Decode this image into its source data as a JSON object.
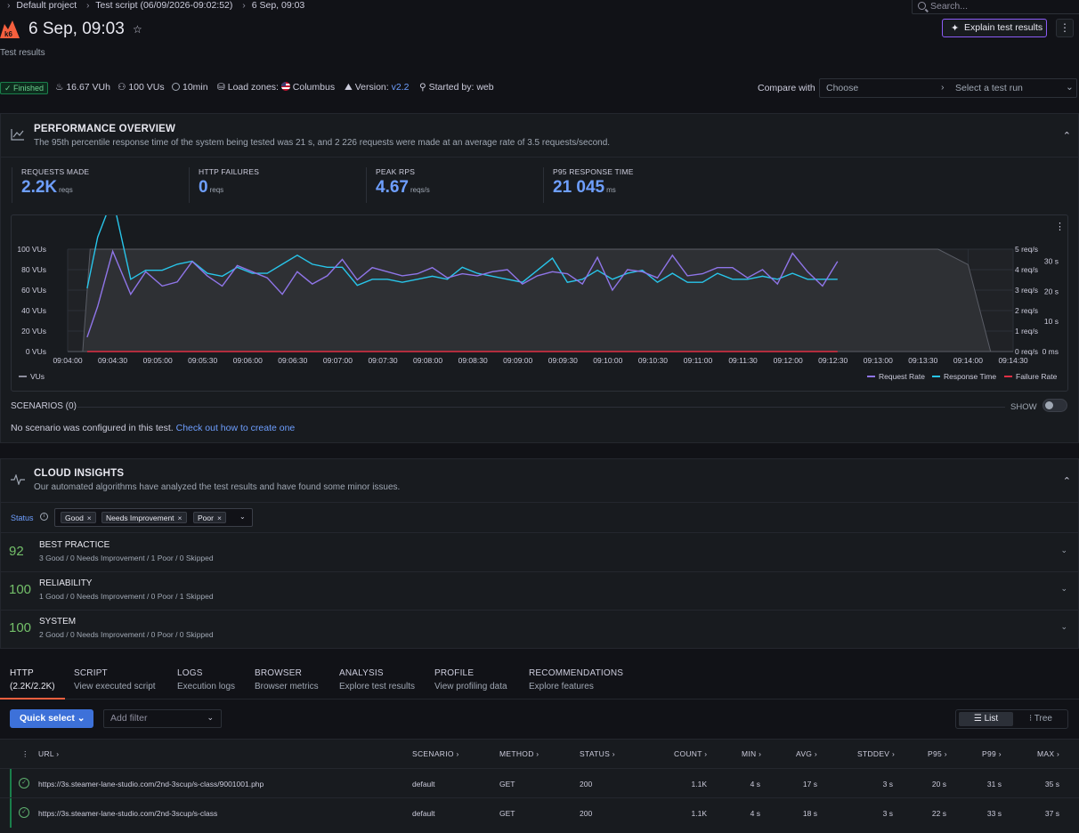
{
  "breadcrumb": [
    "Default project",
    "Test script (06/09/2026-09:02:52)",
    "6 Sep, 09:03"
  ],
  "search": {
    "placeholder": "Search..."
  },
  "header": {
    "title": "6 Sep, 09:03",
    "subtitle": "Test results",
    "explain_label": "Explain test results"
  },
  "meta": {
    "status": "Finished",
    "vuh": "16.67 VUh",
    "vus": "100 VUs",
    "duration": "10min",
    "load_zones_label": "Load zones:",
    "load_zone": "Columbus",
    "version_label": "Version:",
    "version": "v2.2",
    "started_by": "Started by: web"
  },
  "compare": {
    "label": "Compare with",
    "choose": "Choose",
    "select": "Select a test run"
  },
  "performance": {
    "title": "PERFORMANCE OVERVIEW",
    "description": "The 95th percentile response time of the system being tested was 21 s, and 2 226 requests were made at an average rate of 3.5 requests/second.",
    "stats": [
      {
        "label": "REQUESTS MADE",
        "value": "2.2K",
        "unit": "reqs"
      },
      {
        "label": "HTTP FAILURES",
        "value": "0",
        "unit": "reqs"
      },
      {
        "label": "PEAK RPS",
        "value": "4.67",
        "unit": "reqs/s"
      },
      {
        "label": "P95 RESPONSE TIME",
        "value": "21 045",
        "unit": "ms"
      }
    ],
    "scenarios_label": "SCENARIOS (0)",
    "show_label": "SHOW",
    "no_scenario_text": "No scenario was configured in this test.",
    "no_scenario_link": "Check out how to create one"
  },
  "chart_data": {
    "type": "line",
    "x": [
      "09:04:00",
      "09:04:30",
      "09:05:00",
      "09:05:30",
      "09:06:00",
      "09:06:30",
      "09:07:00",
      "09:07:30",
      "09:08:00",
      "09:08:30",
      "09:09:00",
      "09:09:30",
      "09:10:00",
      "09:10:30",
      "09:11:00",
      "09:11:30",
      "09:12:00",
      "09:12:30",
      "09:13:00",
      "09:13:30",
      "09:14:00",
      "09:14:30"
    ],
    "y_left_ticks": [
      "0 VUs",
      "20 VUs",
      "40 VUs",
      "60 VUs",
      "80 VUs",
      "100 VUs"
    ],
    "y_right_rate_ticks": [
      "0 req/s",
      "1 req/s",
      "2 req/s",
      "3 req/s",
      "4 req/s",
      "5 req/s"
    ],
    "y_right_time_ticks": [
      "0 ms",
      "10 s",
      "20 s",
      "30 s"
    ],
    "vus": [
      [
        0,
        0
      ],
      [
        5,
        0
      ],
      [
        10,
        0
      ],
      [
        15,
        100
      ],
      [
        540,
        100
      ],
      [
        580,
        100
      ],
      [
        600,
        85
      ],
      [
        615,
        0
      ],
      [
        630,
        0
      ]
    ],
    "request_rate": [
      [
        13,
        0.7
      ],
      [
        20,
        2.2
      ],
      [
        30,
        4.9
      ],
      [
        42,
        2.8
      ],
      [
        52,
        3.9
      ],
      [
        63,
        3.2
      ],
      [
        73,
        3.4
      ],
      [
        83,
        4.4
      ],
      [
        93,
        3.7
      ],
      [
        103,
        3.2
      ],
      [
        113,
        4.2
      ],
      [
        123,
        3.9
      ],
      [
        133,
        3.6
      ],
      [
        143,
        2.8
      ],
      [
        153,
        3.9
      ],
      [
        163,
        3.3
      ],
      [
        173,
        3.7
      ],
      [
        183,
        4.5
      ],
      [
        193,
        3.5
      ],
      [
        203,
        4.1
      ],
      [
        213,
        3.9
      ],
      [
        223,
        3.7
      ],
      [
        233,
        3.8
      ],
      [
        243,
        4.1
      ],
      [
        253,
        3.6
      ],
      [
        263,
        3.8
      ],
      [
        273,
        3.7
      ],
      [
        283,
        3.9
      ],
      [
        293,
        4.0
      ],
      [
        303,
        3.3
      ],
      [
        313,
        3.7
      ],
      [
        323,
        3.9
      ],
      [
        333,
        3.8
      ],
      [
        343,
        3.3
      ],
      [
        353,
        4.6
      ],
      [
        363,
        3.0
      ],
      [
        373,
        4.0
      ],
      [
        383,
        3.9
      ],
      [
        393,
        3.6
      ],
      [
        403,
        4.7
      ],
      [
        413,
        3.7
      ],
      [
        423,
        3.8
      ],
      [
        433,
        4.1
      ],
      [
        443,
        4.1
      ],
      [
        453,
        3.6
      ],
      [
        463,
        4.0
      ],
      [
        473,
        3.3
      ],
      [
        483,
        4.8
      ],
      [
        493,
        3.9
      ],
      [
        503,
        3.2
      ],
      [
        513,
        4.4
      ]
    ],
    "response_time": [
      [
        13,
        21
      ],
      [
        20,
        38
      ],
      [
        30,
        51
      ],
      [
        42,
        24
      ],
      [
        52,
        27
      ],
      [
        63,
        27
      ],
      [
        73,
        29
      ],
      [
        83,
        30
      ],
      [
        93,
        26
      ],
      [
        103,
        25
      ],
      [
        113,
        28
      ],
      [
        123,
        26
      ],
      [
        133,
        26
      ],
      [
        143,
        29
      ],
      [
        153,
        32
      ],
      [
        163,
        29
      ],
      [
        173,
        28
      ],
      [
        183,
        28
      ],
      [
        193,
        22
      ],
      [
        203,
        24
      ],
      [
        213,
        24
      ],
      [
        223,
        23
      ],
      [
        233,
        24
      ],
      [
        243,
        25
      ],
      [
        253,
        24
      ],
      [
        263,
        28
      ],
      [
        273,
        26
      ],
      [
        283,
        25
      ],
      [
        293,
        24
      ],
      [
        303,
        23
      ],
      [
        313,
        27
      ],
      [
        323,
        31
      ],
      [
        333,
        23
      ],
      [
        343,
        24
      ],
      [
        353,
        27
      ],
      [
        363,
        24
      ],
      [
        373,
        26
      ],
      [
        383,
        27
      ],
      [
        393,
        23
      ],
      [
        403,
        26
      ],
      [
        413,
        23
      ],
      [
        423,
        23
      ],
      [
        433,
        26
      ],
      [
        443,
        24
      ],
      [
        453,
        24
      ],
      [
        463,
        25
      ],
      [
        473,
        24
      ],
      [
        483,
        26
      ],
      [
        493,
        24
      ],
      [
        503,
        24
      ],
      [
        513,
        24
      ]
    ],
    "failure_rate": [
      [
        13,
        0
      ],
      [
        513,
        0
      ]
    ],
    "legend": [
      "VUs",
      "Request Rate",
      "Response Time",
      "Failure Rate"
    ],
    "colors": {
      "vus": "#8e8e9e",
      "request_rate": "#8f75e8",
      "response_time": "#28c5ea",
      "failure_rate": "#e02f44"
    },
    "grid": true
  },
  "insights": {
    "title": "CLOUD INSIGHTS",
    "description": "Our automated algorithms have analyzed the test results and have found some minor issues.",
    "status_label": "Status",
    "chips": [
      "Good",
      "Needs Improvement",
      "Poor"
    ],
    "rows": [
      {
        "score": "92",
        "name": "BEST PRACTICE",
        "summary": "3 Good / 0 Needs Improvement / 1 Poor / 0 Skipped"
      },
      {
        "score": "100",
        "name": "RELIABILITY",
        "summary": "1 Good / 0 Needs Improvement / 0 Poor / 1 Skipped"
      },
      {
        "score": "100",
        "name": "SYSTEM",
        "summary": "2 Good / 0 Needs Improvement / 0 Poor / 0 Skipped"
      }
    ]
  },
  "tabs": [
    {
      "title": "HTTP",
      "sub": "(2.2K/2.2K)"
    },
    {
      "title": "SCRIPT",
      "sub": "View executed script"
    },
    {
      "title": "LOGS",
      "sub": "Execution logs"
    },
    {
      "title": "BROWSER",
      "sub": "Browser metrics"
    },
    {
      "title": "ANALYSIS",
      "sub": "Explore test results"
    },
    {
      "title": "PROFILE",
      "sub": "View profiling data"
    },
    {
      "title": "RECOMMENDATIONS",
      "sub": "Explore features"
    }
  ],
  "toolbar": {
    "quick_select": "Quick select",
    "add_filter": "Add filter",
    "list": "List",
    "tree": "Tree"
  },
  "table": {
    "headers": [
      "URL",
      "SCENARIO",
      "METHOD",
      "STATUS",
      "COUNT",
      "MIN",
      "AVG",
      "STDDEV",
      "P95",
      "P99",
      "MAX"
    ],
    "rows": [
      {
        "url": "https://3s.steamer-lane-studio.com/2nd-3scup/s-class/9001001.php",
        "scenario": "default",
        "method": "GET",
        "status": "200",
        "count": "1.1K",
        "min": "4 s",
        "avg": "17 s",
        "stddev": "3 s",
        "p95": "20 s",
        "p99": "31 s",
        "max": "35 s"
      },
      {
        "url": "https://3s.steamer-lane-studio.com/2nd-3scup/s-class",
        "scenario": "default",
        "method": "GET",
        "status": "200",
        "count": "1.1K",
        "min": "4 s",
        "avg": "18 s",
        "stddev": "3 s",
        "p95": "22 s",
        "p99": "33 s",
        "max": "37 s"
      }
    ]
  }
}
